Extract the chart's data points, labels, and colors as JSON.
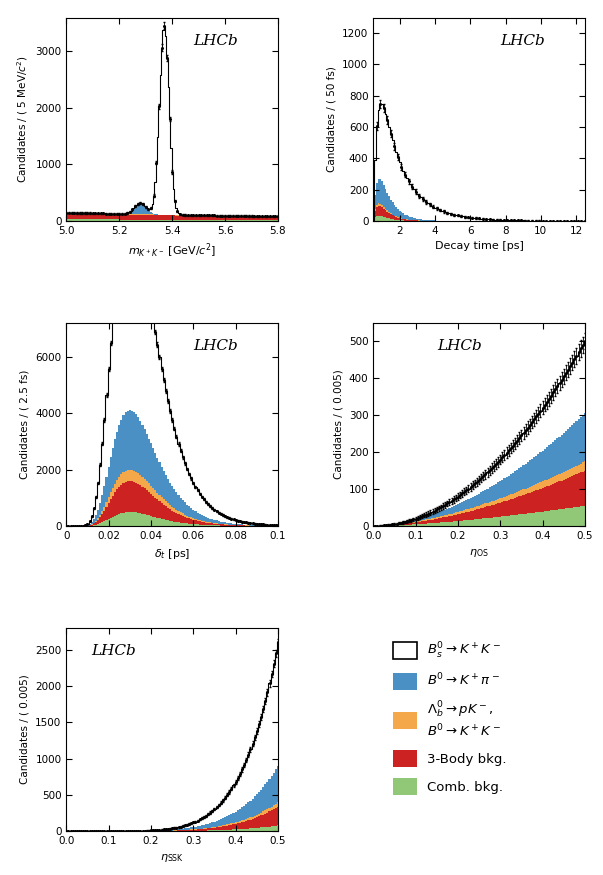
{
  "colors": {
    "blue": "#4A90C4",
    "orange": "#F5A84A",
    "red": "#CC2222",
    "green": "#90C878"
  },
  "panel1": {
    "xlabel": "$m_{K^+K^-}$ [GeV/$c^2$]",
    "ylabel": "Candidates / ( 5 MeV/$c^2$)",
    "xlim": [
      5.0,
      5.8
    ],
    "ylim": [
      0,
      3600
    ],
    "yticks": [
      0,
      1000,
      2000,
      3000
    ],
    "xticks": [
      5.0,
      5.2,
      5.4,
      5.6,
      5.8
    ],
    "lhcb_x": 0.6,
    "lhcb_y": 0.92
  },
  "panel2": {
    "xlabel": "Decay time [ps]",
    "ylabel": "Candidates / ( 50 fs)",
    "xlim": [
      0.5,
      12.5
    ],
    "ylim": [
      0,
      1300
    ],
    "yticks": [
      0,
      200,
      400,
      600,
      800,
      1000,
      1200
    ],
    "xticks": [
      2,
      4,
      6,
      8,
      10,
      12
    ],
    "lhcb_x": 0.6,
    "lhcb_y": 0.92
  },
  "panel3": {
    "xlabel": "$\\delta_t$ [ps]",
    "ylabel": "Candidates / ( 2.5 fs)",
    "xlim": [
      0,
      0.1
    ],
    "ylim": [
      0,
      7200
    ],
    "yticks": [
      0,
      2000,
      4000,
      6000
    ],
    "xticks": [
      0,
      0.02,
      0.04,
      0.06,
      0.08,
      0.1
    ],
    "lhcb_x": 0.6,
    "lhcb_y": 0.92
  },
  "panel4": {
    "xlabel": "$\\eta_{\\mathrm{OS}}$",
    "ylabel": "Candidates / ( 0.005)",
    "xlim": [
      0,
      0.5
    ],
    "ylim": [
      0,
      550
    ],
    "yticks": [
      0,
      100,
      200,
      300,
      400,
      500
    ],
    "xticks": [
      0,
      0.1,
      0.2,
      0.3,
      0.4,
      0.5
    ],
    "lhcb_x": 0.3,
    "lhcb_y": 0.92
  },
  "panel5": {
    "xlabel": "$\\eta_{\\mathrm{SSK}}$",
    "ylabel": "Candidates / ( 0.005)",
    "xlim": [
      0,
      0.5
    ],
    "ylim": [
      0,
      2800
    ],
    "yticks": [
      0,
      500,
      1000,
      1500,
      2000,
      2500
    ],
    "xticks": [
      0,
      0.1,
      0.2,
      0.3,
      0.4,
      0.5
    ],
    "lhcb_x": 0.12,
    "lhcb_y": 0.92
  }
}
